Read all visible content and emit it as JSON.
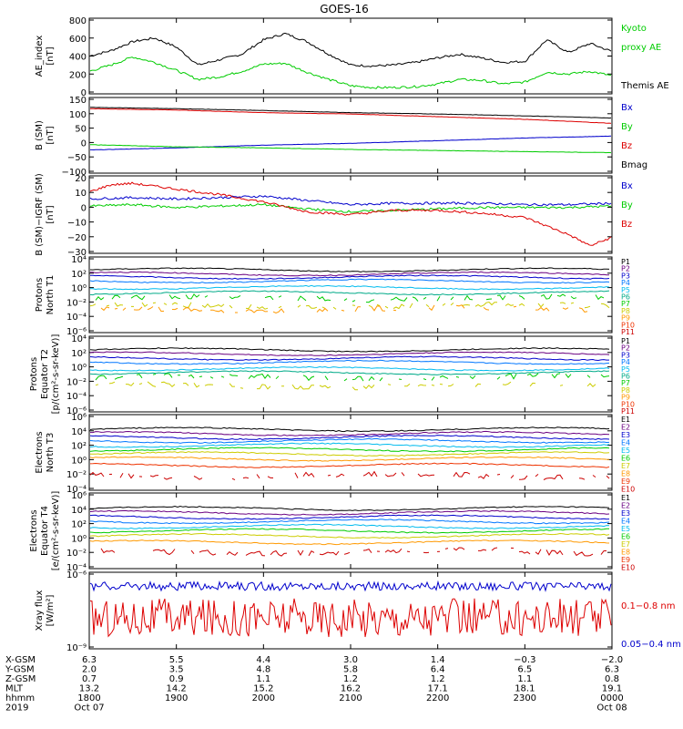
{
  "title": "GOES-16",
  "panels": [
    {
      "id": "ae",
      "ylabel": [
        "AE_index",
        "[nT]"
      ],
      "ticks": [
        "800",
        "600",
        "400",
        "200",
        "0"
      ],
      "legend": [
        {
          "text": "Kyoto",
          "color": "#00cc00"
        },
        {
          "text": "proxy AE",
          "color": "#00cc00"
        },
        {
          "text": "",
          "color": "#000000"
        },
        {
          "text": "Themis AE",
          "color": "#000000"
        }
      ]
    },
    {
      "id": "bsm",
      "ylabel": [
        "B (SM)",
        "[nT]"
      ],
      "ticks": [
        "150",
        "100",
        "50",
        "0",
        "−50",
        "−100"
      ],
      "legend": [
        {
          "text": "Bx",
          "color": "#0000cc"
        },
        {
          "text": "By",
          "color": "#00cc00"
        },
        {
          "text": "Bz",
          "color": "#dd0000"
        },
        {
          "text": "Bmag",
          "color": "#000000"
        }
      ]
    },
    {
      "id": "bigrf",
      "ylabel": [
        "B (SM)−IGRF (SM)",
        "[nT]"
      ],
      "ticks": [
        "20",
        "10",
        "0",
        "−10",
        "−20",
        "−30"
      ],
      "legend": [
        {
          "text": "Bx",
          "color": "#0000cc"
        },
        {
          "text": "By",
          "color": "#00cc00"
        },
        {
          "text": "Bz",
          "color": "#dd0000"
        }
      ]
    },
    {
      "id": "pt1",
      "ylabel": [
        "Protons",
        "North T1"
      ],
      "ticks": [
        "10⁴",
        "10²",
        "10⁰",
        "10⁻²",
        "10⁻⁴",
        "10⁻⁶"
      ],
      "legend": [
        {
          "text": "P1",
          "color": "#000000"
        },
        {
          "text": "P2",
          "color": "#6a0080"
        },
        {
          "text": "P3",
          "color": "#0000cc"
        },
        {
          "text": "P4",
          "color": "#0077ff"
        },
        {
          "text": "P5",
          "color": "#00bbee"
        },
        {
          "text": "P6",
          "color": "#00aa88"
        },
        {
          "text": "P7",
          "color": "#00cc00"
        },
        {
          "text": "P8",
          "color": "#cccc00"
        },
        {
          "text": "P9",
          "color": "#ff9900"
        },
        {
          "text": "P10",
          "color": "#ee3300"
        },
        {
          "text": "P11",
          "color": "#cc0000"
        }
      ]
    },
    {
      "id": "pt2",
      "ylabel": [
        "Protons",
        "Equator T2",
        "[p/(cm²-s-sr-keV)]"
      ],
      "ticks": [
        "10⁴",
        "10²",
        "10⁰",
        "10⁻²",
        "10⁻⁴",
        "10⁻⁶"
      ],
      "legend": [
        {
          "text": "P1",
          "color": "#000000"
        },
        {
          "text": "P2",
          "color": "#6a0080"
        },
        {
          "text": "P3",
          "color": "#0000cc"
        },
        {
          "text": "P4",
          "color": "#0077ff"
        },
        {
          "text": "P5",
          "color": "#00bbee"
        },
        {
          "text": "P6",
          "color": "#00aa88"
        },
        {
          "text": "P7",
          "color": "#00cc00"
        },
        {
          "text": "P8",
          "color": "#cccc00"
        },
        {
          "text": "P9",
          "color": "#ff9900"
        },
        {
          "text": "P10",
          "color": "#ee3300"
        },
        {
          "text": "P11",
          "color": "#cc0000"
        }
      ]
    },
    {
      "id": "et3",
      "ylabel": [
        "Electrons",
        "North T3"
      ],
      "ticks": [
        "10⁶",
        "10⁴",
        "10²",
        "10⁰",
        "10⁻²",
        "10⁻⁴"
      ],
      "legend": [
        {
          "text": "E1",
          "color": "#000000"
        },
        {
          "text": "E2",
          "color": "#6a0080"
        },
        {
          "text": "E3",
          "color": "#0000cc"
        },
        {
          "text": "E4",
          "color": "#0077ff"
        },
        {
          "text": "E5",
          "color": "#00bbee"
        },
        {
          "text": "E6",
          "color": "#00cc00"
        },
        {
          "text": "E7",
          "color": "#cccc00"
        },
        {
          "text": "E8",
          "color": "#ff9900"
        },
        {
          "text": "E9",
          "color": "#ee3300"
        },
        {
          "text": "E10",
          "color": "#cc0000"
        }
      ]
    },
    {
      "id": "et4",
      "ylabel": [
        "Electrons",
        "Equator T4",
        "[e/(cm²-s-sr-keV)]"
      ],
      "ticks": [
        "10⁶",
        "10⁴",
        "10²",
        "10⁰",
        "10⁻²",
        "10⁻⁴"
      ],
      "legend": [
        {
          "text": "E1",
          "color": "#000000"
        },
        {
          "text": "E2",
          "color": "#6a0080"
        },
        {
          "text": "E3",
          "color": "#0000cc"
        },
        {
          "text": "E4",
          "color": "#0077ff"
        },
        {
          "text": "E5",
          "color": "#00bbee"
        },
        {
          "text": "E6",
          "color": "#00cc00"
        },
        {
          "text": "E7",
          "color": "#cccc00"
        },
        {
          "text": "E8",
          "color": "#ff9900"
        },
        {
          "text": "E9",
          "color": "#ee3300"
        },
        {
          "text": "E10",
          "color": "#cc0000"
        }
      ]
    },
    {
      "id": "xray",
      "ylabel": [
        "Xray flux",
        "[W/m²]"
      ],
      "ticks": [
        "10⁻⁶",
        "10⁻⁹"
      ],
      "legend": [
        {
          "text": "0.1−0.8 nm",
          "color": "#dd0000"
        },
        {
          "text": "0.05−0.4 nm",
          "color": "#0000cc"
        }
      ]
    }
  ],
  "footer": {
    "rows": [
      {
        "label": "X-GSM",
        "values": [
          "6.3",
          "5.5",
          "4.4",
          "3.0",
          "1.4",
          "−0.3",
          "−2.0"
        ]
      },
      {
        "label": "Y-GSM",
        "values": [
          "2.0",
          "3.5",
          "4.8",
          "5.8",
          "6.4",
          "6.5",
          "6.3"
        ]
      },
      {
        "label": "Z-GSM",
        "values": [
          "0.7",
          "0.9",
          "1.1",
          "1.2",
          "1.2",
          "1.1",
          "0.8"
        ]
      },
      {
        "label": "MLT",
        "values": [
          "13.2",
          "14.2",
          "15.2",
          "16.2",
          "17.1",
          "18.1",
          "19.1"
        ]
      },
      {
        "label": "hhmm",
        "values": [
          "1800",
          "1900",
          "2000",
          "2100",
          "2200",
          "2300",
          "0000"
        ]
      },
      {
        "label": "2019",
        "values": [
          "Oct 07",
          "",
          "",
          "",
          "",
          "",
          "Oct 08"
        ]
      }
    ]
  },
  "chart_data": {
    "type": "line",
    "title": "GOES-16",
    "x_hours": [
      18,
      19,
      20,
      21,
      22,
      23,
      24
    ],
    "x_ticklabels": [
      "1800",
      "1900",
      "2000",
      "2100",
      "2200",
      "2300",
      "0000"
    ],
    "series_groups": {
      "ae": {
        "ylim": [
          0,
          800
        ],
        "series": [
          {
            "name": "Themis AE",
            "color": "#000000",
            "x": [
              18.0,
              18.25,
              18.5,
              18.75,
              19.0,
              19.25,
              19.5,
              19.75,
              20.0,
              20.25,
              20.5,
              20.75,
              21.0,
              21.25,
              21.5,
              21.75,
              22.0,
              22.25,
              22.5,
              22.75,
              23.0,
              23.25,
              23.5,
              23.75,
              24.0
            ],
            "y": [
              400,
              460,
              560,
              600,
              500,
              300,
              360,
              420,
              580,
              650,
              560,
              420,
              300,
              290,
              300,
              330,
              380,
              420,
              380,
              330,
              340,
              580,
              440,
              540,
              450
            ]
          },
          {
            "name": "Kyoto proxy AE",
            "color": "#00cc00",
            "x": [
              18.0,
              18.25,
              18.5,
              18.75,
              19.0,
              19.25,
              19.5,
              19.75,
              20.0,
              20.25,
              20.5,
              20.75,
              21.0,
              21.25,
              21.5,
              21.75,
              22.0,
              22.25,
              22.5,
              22.75,
              23.0,
              23.25,
              23.5,
              23.75,
              24.0
            ],
            "y": [
              230,
              300,
              390,
              330,
              240,
              140,
              170,
              230,
              310,
              320,
              220,
              140,
              70,
              50,
              50,
              60,
              90,
              140,
              130,
              90,
              110,
              220,
              200,
              230,
              180
            ]
          }
        ]
      },
      "bsm": {
        "ylim": [
          -120,
          150
        ],
        "series": [
          {
            "name": "Bx",
            "color": "#0000cc",
            "x": [
              18,
              19,
              20,
              21,
              22,
              23,
              24
            ],
            "y": [
              -40,
              -32,
              -22,
              -15,
              -5,
              5,
              12
            ]
          },
          {
            "name": "By",
            "color": "#00cc00",
            "x": [
              18,
              19,
              20,
              21,
              22,
              23,
              24
            ],
            "y": [
              -20,
              -28,
              -32,
              -38,
              -42,
              -46,
              -50
            ]
          },
          {
            "name": "Bz",
            "color": "#dd0000",
            "x": [
              18,
              19,
              20,
              21,
              22,
              23,
              24
            ],
            "y": [
              115,
              110,
              100,
              95,
              85,
              75,
              60
            ]
          },
          {
            "name": "Bmag",
            "color": "#000000",
            "x": [
              18,
              19,
              20,
              21,
              22,
              23,
              24
            ],
            "y": [
              120,
              115,
              108,
              100,
              95,
              88,
              80
            ]
          }
        ]
      },
      "bigrf": {
        "ylim": [
          -32,
          20
        ],
        "series": [
          {
            "name": "Bx",
            "color": "#0000cc",
            "x": [
              18,
              18.5,
              19,
              19.5,
              20,
              20.5,
              21,
              21.5,
              22,
              22.5,
              23,
              23.5,
              24
            ],
            "y": [
              5,
              6,
              5,
              6,
              7,
              4,
              1,
              2,
              2,
              2,
              1,
              1,
              2
            ]
          },
          {
            "name": "By",
            "color": "#00cc00",
            "x": [
              18,
              18.5,
              19,
              19.5,
              20,
              20.5,
              21,
              21.5,
              22,
              22.5,
              23,
              23.5,
              24
            ],
            "y": [
              0,
              1,
              -1,
              0,
              1,
              -2,
              -4,
              -3,
              -2,
              -1,
              -1,
              -1,
              0
            ]
          },
          {
            "name": "Bz",
            "color": "#dd0000",
            "x": [
              18,
              18.25,
              18.5,
              19,
              19.5,
              20,
              20.5,
              21,
              21.5,
              22,
              22.5,
              23,
              23.5,
              23.75,
              24
            ],
            "y": [
              10,
              15,
              16,
              12,
              8,
              3,
              -4,
              -6,
              -3,
              -3,
              -5,
              -8,
              -20,
              -28,
              -22
            ]
          }
        ]
      },
      "pt1": {
        "ylim_log10": [
          -7,
          4
        ],
        "series": [
          {
            "name": "P1",
            "color": "#000000",
            "log10": 2.3
          },
          {
            "name": "P2",
            "color": "#6a0080",
            "log10": 1.7
          },
          {
            "name": "P3",
            "color": "#0000cc",
            "log10": 1.2
          },
          {
            "name": "P4",
            "color": "#0077ff",
            "log10": 0.6
          },
          {
            "name": "P5",
            "color": "#00bbee",
            "log10": -0.4
          },
          {
            "name": "P6",
            "color": "#00aa88",
            "log10": -1.2
          },
          {
            "name": "P7",
            "color": "#00cc00",
            "log10": -2.0
          },
          {
            "name": "P8",
            "color": "#cccc00",
            "log10": -3.2
          },
          {
            "name": "P9",
            "color": "#ff9900",
            "log10": -3.7
          }
        ]
      },
      "pt2": {
        "ylim_log10": [
          -7,
          4
        ],
        "series": [
          {
            "name": "P1",
            "color": "#000000",
            "log10": 2.2
          },
          {
            "name": "P2",
            "color": "#6a0080",
            "log10": 1.6
          },
          {
            "name": "P3",
            "color": "#0000cc",
            "log10": 0.9
          },
          {
            "name": "P4",
            "color": "#0077ff",
            "log10": 0.3
          },
          {
            "name": "P5",
            "color": "#00bbee",
            "log10": -0.7
          },
          {
            "name": "P6",
            "color": "#00aa88",
            "log10": -1.3
          },
          {
            "name": "P7",
            "color": "#00cc00",
            "log10": -2.0
          },
          {
            "name": "P8",
            "color": "#cccc00",
            "log10": -3.3
          }
        ]
      },
      "et3": {
        "ylim_log10": [
          -4,
          6
        ],
        "series": [
          {
            "name": "E1",
            "color": "#000000",
            "log10": 4.2
          },
          {
            "name": "E2",
            "color": "#6a0080",
            "log10": 3.6
          },
          {
            "name": "E3",
            "color": "#0000cc",
            "log10": 3.1
          },
          {
            "name": "E4",
            "color": "#0077ff",
            "log10": 2.6
          },
          {
            "name": "E5",
            "color": "#00bbee",
            "log10": 2.0
          },
          {
            "name": "E6",
            "color": "#00cc00",
            "log10": 1.4
          },
          {
            "name": "E7",
            "color": "#cccc00",
            "log10": 0.8
          },
          {
            "name": "E8",
            "color": "#ff9900",
            "log10": 0.1
          },
          {
            "name": "E9",
            "color": "#ee3300",
            "log10": -0.8
          },
          {
            "name": "E10",
            "color": "#cc0000",
            "log10": -2.2
          }
        ]
      },
      "et4": {
        "ylim_log10": [
          -4,
          6
        ],
        "series": [
          {
            "name": "E1",
            "color": "#000000",
            "log10": 4.1
          },
          {
            "name": "E2",
            "color": "#6a0080",
            "log10": 3.5
          },
          {
            "name": "E3",
            "color": "#0000cc",
            "log10": 2.9
          },
          {
            "name": "E4",
            "color": "#0077ff",
            "log10": 2.3
          },
          {
            "name": "E5",
            "color": "#00bbee",
            "log10": 1.6
          },
          {
            "name": "E6",
            "color": "#00cc00",
            "log10": 1.0
          },
          {
            "name": "E7",
            "color": "#cccc00",
            "log10": 0.3
          },
          {
            "name": "E8",
            "color": "#ff9900",
            "log10": -0.6
          },
          {
            "name": "E9",
            "color": "#cc0000",
            "log10": -1.9
          }
        ]
      },
      "xray": {
        "ylim_log10": [
          -9,
          -6
        ],
        "series": [
          {
            "name": "0.05−0.4 nm",
            "color": "#0000cc",
            "log10": -6.5
          },
          {
            "name": "0.1−0.8 nm",
            "color": "#dd0000",
            "log10": -7.8
          }
        ]
      }
    }
  }
}
